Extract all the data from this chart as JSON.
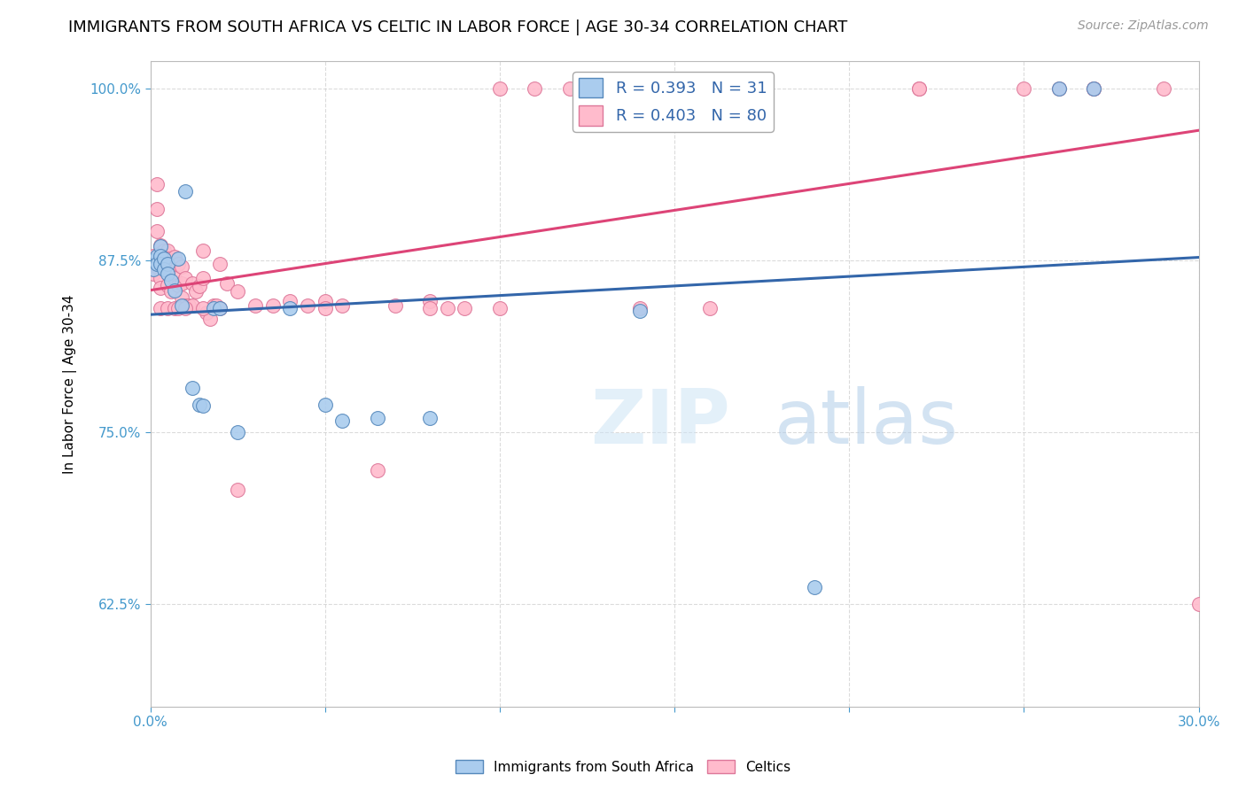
{
  "title": "IMMIGRANTS FROM SOUTH AFRICA VS CELTIC IN LABOR FORCE | AGE 30-34 CORRELATION CHART",
  "source": "Source: ZipAtlas.com",
  "ylabel": "In Labor Force | Age 30-34",
  "xlim": [
    0.0,
    0.3
  ],
  "ylim": [
    0.55,
    1.02
  ],
  "xticks": [
    0.0,
    0.05,
    0.1,
    0.15,
    0.2,
    0.25,
    0.3
  ],
  "xticklabels": [
    "0.0%",
    "",
    "",
    "",
    "",
    "",
    "30.0%"
  ],
  "yticks": [
    0.625,
    0.75,
    0.875,
    1.0
  ],
  "yticklabels": [
    "62.5%",
    "75.0%",
    "87.5%",
    "100.0%"
  ],
  "blue_R": 0.393,
  "blue_N": 31,
  "pink_R": 0.403,
  "pink_N": 80,
  "blue_color": "#aaccee",
  "pink_color": "#ffbbcc",
  "blue_edge_color": "#5588bb",
  "pink_edge_color": "#dd7799",
  "blue_line_color": "#3366aa",
  "pink_line_color": "#dd4477",
  "blue_scatter_x": [
    0.001,
    0.001,
    0.002,
    0.002,
    0.003,
    0.003,
    0.003,
    0.004,
    0.004,
    0.005,
    0.005,
    0.006,
    0.007,
    0.008,
    0.009,
    0.01,
    0.012,
    0.014,
    0.015,
    0.018,
    0.02,
    0.025,
    0.04,
    0.05,
    0.055,
    0.065,
    0.08,
    0.14,
    0.19,
    0.26,
    0.27
  ],
  "blue_scatter_y": [
    0.875,
    0.868,
    0.878,
    0.872,
    0.885,
    0.878,
    0.872,
    0.876,
    0.868,
    0.872,
    0.865,
    0.86,
    0.853,
    0.876,
    0.842,
    0.925,
    0.782,
    0.77,
    0.769,
    0.84,
    0.84,
    0.75,
    0.84,
    0.77,
    0.758,
    0.76,
    0.76,
    0.838,
    0.637,
    1.0,
    1.0
  ],
  "pink_scatter_x": [
    0.001,
    0.001,
    0.001,
    0.002,
    0.002,
    0.002,
    0.002,
    0.003,
    0.003,
    0.003,
    0.003,
    0.003,
    0.004,
    0.004,
    0.005,
    0.005,
    0.005,
    0.006,
    0.007,
    0.007,
    0.008,
    0.008,
    0.009,
    0.009,
    0.009,
    0.01,
    0.01,
    0.011,
    0.012,
    0.012,
    0.013,
    0.014,
    0.015,
    0.015,
    0.016,
    0.017,
    0.018,
    0.019,
    0.02,
    0.022,
    0.025,
    0.025,
    0.03,
    0.035,
    0.04,
    0.045,
    0.05,
    0.055,
    0.065,
    0.07,
    0.08,
    0.085,
    0.09,
    0.1,
    0.11,
    0.12,
    0.13,
    0.14,
    0.15,
    0.17,
    0.22,
    0.25,
    0.27,
    0.29,
    0.003,
    0.005,
    0.007,
    0.008,
    0.01,
    0.015,
    0.02,
    0.05,
    0.08,
    0.1,
    0.14,
    0.16,
    0.22,
    0.26,
    0.27,
    0.3
  ],
  "pink_scatter_y": [
    0.878,
    0.872,
    0.865,
    0.93,
    0.912,
    0.896,
    0.87,
    0.886,
    0.88,
    0.875,
    0.862,
    0.855,
    0.882,
    0.87,
    0.882,
    0.876,
    0.857,
    0.852,
    0.877,
    0.862,
    0.872,
    0.857,
    0.87,
    0.858,
    0.848,
    0.862,
    0.842,
    0.842,
    0.858,
    0.842,
    0.852,
    0.856,
    0.882,
    0.862,
    0.837,
    0.832,
    0.842,
    0.842,
    0.872,
    0.858,
    0.852,
    0.708,
    0.842,
    0.842,
    0.845,
    0.842,
    0.845,
    0.842,
    0.722,
    0.842,
    0.845,
    0.84,
    0.84,
    1.0,
    1.0,
    1.0,
    1.0,
    1.0,
    1.0,
    1.0,
    1.0,
    1.0,
    1.0,
    1.0,
    0.84,
    0.84,
    0.84,
    0.84,
    0.84,
    0.84,
    0.84,
    0.84,
    0.84,
    0.84,
    0.84,
    0.84,
    1.0,
    1.0,
    1.0,
    0.625
  ],
  "watermark_zip": "ZIP",
  "watermark_atlas": "atlas",
  "background_color": "#ffffff",
  "grid_color": "#cccccc",
  "tick_color": "#4499cc",
  "title_fontsize": 13,
  "axis_label_fontsize": 11,
  "tick_fontsize": 11,
  "legend_fontsize": 13
}
